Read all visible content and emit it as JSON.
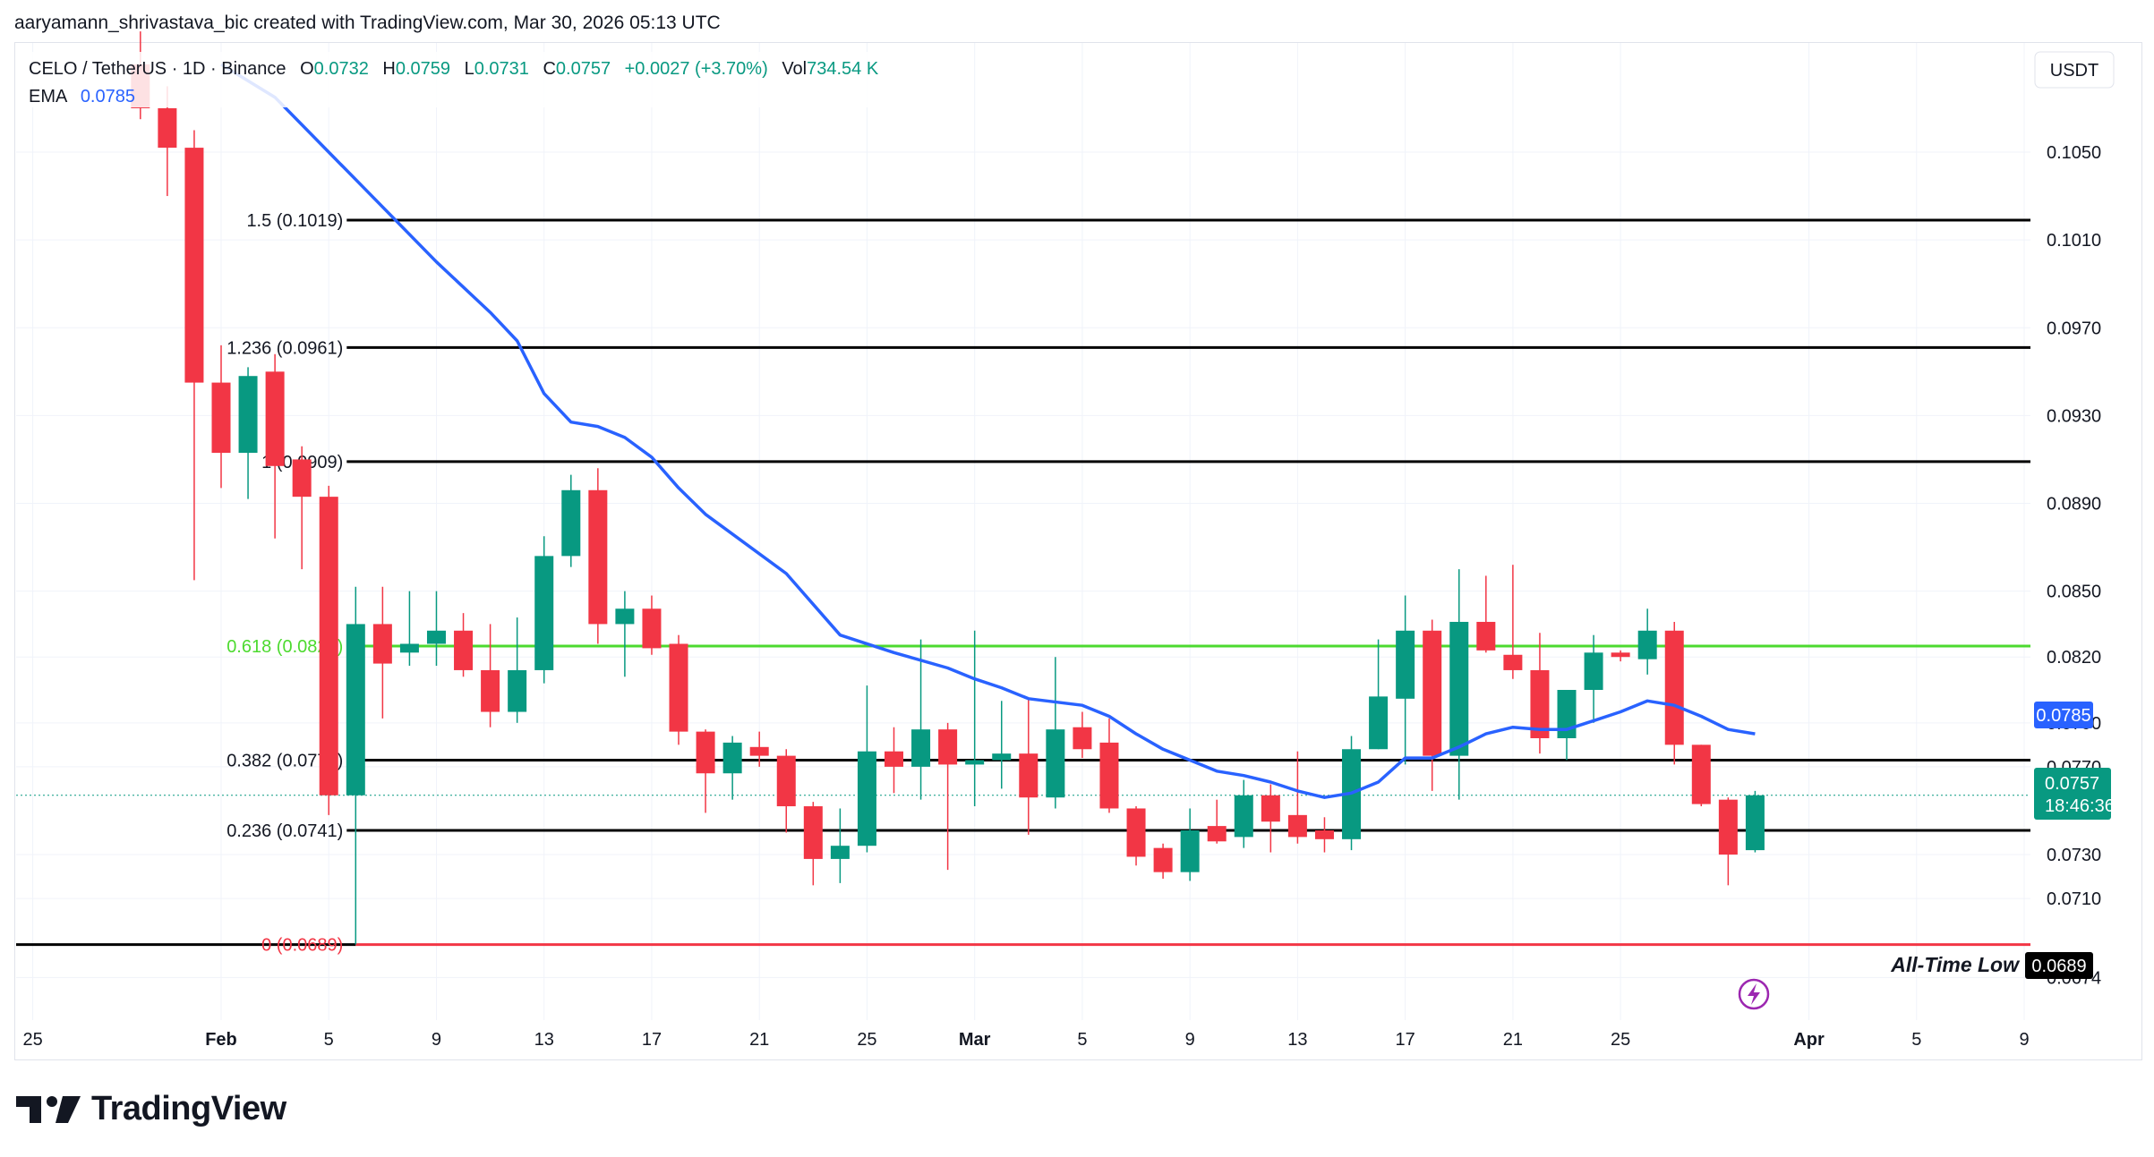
{
  "header": {
    "attribution": "aaryamann_shrivastava_bic created with TradingView.com, Mar 30, 2026 05:13 UTC"
  },
  "legend": {
    "symbol": "CELO / TetherUS · 1D · Binance",
    "o_label": "O",
    "o_value": "0.0732",
    "h_label": "H",
    "h_value": "0.0759",
    "l_label": "L",
    "l_value": "0.0731",
    "c_label": "C",
    "c_value": "0.0757",
    "change": "+0.0027 (+3.70%)",
    "vol_label": "Vol",
    "vol_value": "734.54 K",
    "ema_label": "EMA",
    "ema_value": "0.0785"
  },
  "currency_button": "USDT",
  "price_badges": {
    "ema": "0.0785",
    "last": "0.0757",
    "countdown": "18:46:36",
    "atl": "0.0689"
  },
  "atl_label": "All-Time Low",
  "brand": {
    "name": "TradingView"
  },
  "colors": {
    "up": "#089981",
    "down": "#f23645",
    "ema": "#2962ff",
    "fib_line": "#000000",
    "fib_618": "#4cda2f",
    "atl_line": "#f23645",
    "grid": "#f0f3fa",
    "text": "#131722",
    "muted": "#787b86",
    "lightning": "#9c27b0"
  },
  "chart_data": {
    "type": "candlestick",
    "symbol": "CELO / TetherUS",
    "interval": "1D",
    "exchange": "Binance",
    "y_axis": {
      "ticks": [
        0.105,
        0.101,
        0.097,
        0.093,
        0.089,
        0.085,
        0.082,
        0.079,
        0.077,
        0.073,
        0.071,
        0.0674
      ],
      "tick_labels": [
        "0.1050",
        "0.1010",
        "0.0970",
        "0.0930",
        "0.0890",
        "0.0850",
        "0.0820",
        "0.0790",
        "0.0770",
        "0.0730",
        "0.0710",
        "0.0674"
      ],
      "visible_range": [
        0.0663,
        0.1078
      ]
    },
    "x_axis": {
      "ticks": [
        {
          "label": "25",
          "date": "2026-01-25",
          "bold": false
        },
        {
          "label": "Feb",
          "date": "2026-02-01",
          "bold": true
        },
        {
          "label": "5",
          "date": "2026-02-05",
          "bold": false
        },
        {
          "label": "9",
          "date": "2026-02-09",
          "bold": false
        },
        {
          "label": "13",
          "date": "2026-02-13",
          "bold": false
        },
        {
          "label": "17",
          "date": "2026-02-17",
          "bold": false
        },
        {
          "label": "21",
          "date": "2026-02-21",
          "bold": false
        },
        {
          "label": "25",
          "date": "2026-02-25",
          "bold": false
        },
        {
          "label": "Mar",
          "date": "2026-03-01",
          "bold": true
        },
        {
          "label": "5",
          "date": "2026-03-05",
          "bold": false
        },
        {
          "label": "9",
          "date": "2026-03-09",
          "bold": false
        },
        {
          "label": "13",
          "date": "2026-03-13",
          "bold": false
        },
        {
          "label": "17",
          "date": "2026-03-17",
          "bold": false
        },
        {
          "label": "21",
          "date": "2026-03-21",
          "bold": false
        },
        {
          "label": "25",
          "date": "2026-03-25",
          "bold": false
        },
        {
          "label": "Apr",
          "date": "2026-04-01",
          "bold": true
        },
        {
          "label": "5",
          "date": "2026-04-05",
          "bold": false
        },
        {
          "label": "9",
          "date": "2026-04-09",
          "bold": false
        }
      ],
      "visible_range": [
        "2026-01-24",
        "2026-04-09"
      ]
    },
    "candles": [
      {
        "date": "2026-01-29",
        "o": 0.109,
        "h": 0.1105,
        "l": 0.1065,
        "c": 0.107
      },
      {
        "date": "2026-01-30",
        "o": 0.107,
        "h": 0.108,
        "l": 0.103,
        "c": 0.1052
      },
      {
        "date": "2026-01-31",
        "o": 0.1052,
        "h": 0.106,
        "l": 0.0855,
        "c": 0.0945
      },
      {
        "date": "2026-02-01",
        "o": 0.0945,
        "h": 0.0962,
        "l": 0.0897,
        "c": 0.0913
      },
      {
        "date": "2026-02-02",
        "o": 0.0913,
        "h": 0.0952,
        "l": 0.0892,
        "c": 0.0948
      },
      {
        "date": "2026-02-03",
        "o": 0.095,
        "h": 0.0958,
        "l": 0.0874,
        "c": 0.0907
      },
      {
        "date": "2026-02-04",
        "o": 0.091,
        "h": 0.0916,
        "l": 0.086,
        "c": 0.0893
      },
      {
        "date": "2026-02-05",
        "o": 0.0893,
        "h": 0.0898,
        "l": 0.0748,
        "c": 0.0757
      },
      {
        "date": "2026-02-06",
        "o": 0.0757,
        "h": 0.0852,
        "l": 0.0689,
        "c": 0.0835
      },
      {
        "date": "2026-02-07",
        "o": 0.0835,
        "h": 0.0852,
        "l": 0.0792,
        "c": 0.0817
      },
      {
        "date": "2026-02-08",
        "o": 0.0822,
        "h": 0.085,
        "l": 0.0816,
        "c": 0.0826
      },
      {
        "date": "2026-02-09",
        "o": 0.0826,
        "h": 0.085,
        "l": 0.0816,
        "c": 0.0832
      },
      {
        "date": "2026-02-10",
        "o": 0.0832,
        "h": 0.084,
        "l": 0.0811,
        "c": 0.0814
      },
      {
        "date": "2026-02-11",
        "o": 0.0814,
        "h": 0.0835,
        "l": 0.0788,
        "c": 0.0795
      },
      {
        "date": "2026-02-12",
        "o": 0.0795,
        "h": 0.0838,
        "l": 0.079,
        "c": 0.0814
      },
      {
        "date": "2026-02-13",
        "o": 0.0814,
        "h": 0.0875,
        "l": 0.0808,
        "c": 0.0866
      },
      {
        "date": "2026-02-14",
        "o": 0.0866,
        "h": 0.0903,
        "l": 0.0861,
        "c": 0.0896
      },
      {
        "date": "2026-02-15",
        "o": 0.0896,
        "h": 0.0906,
        "l": 0.0826,
        "c": 0.0835
      },
      {
        "date": "2026-02-16",
        "o": 0.0835,
        "h": 0.085,
        "l": 0.0811,
        "c": 0.0842
      },
      {
        "date": "2026-02-17",
        "o": 0.0842,
        "h": 0.0848,
        "l": 0.0821,
        "c": 0.0824
      },
      {
        "date": "2026-02-18",
        "o": 0.0826,
        "h": 0.083,
        "l": 0.078,
        "c": 0.0786
      },
      {
        "date": "2026-02-19",
        "o": 0.0786,
        "h": 0.0787,
        "l": 0.0749,
        "c": 0.0767
      },
      {
        "date": "2026-02-20",
        "o": 0.0767,
        "h": 0.0784,
        "l": 0.0755,
        "c": 0.0781
      },
      {
        "date": "2026-02-21",
        "o": 0.0779,
        "h": 0.0786,
        "l": 0.077,
        "c": 0.0775
      },
      {
        "date": "2026-02-22",
        "o": 0.0775,
        "h": 0.0778,
        "l": 0.074,
        "c": 0.0752
      },
      {
        "date": "2026-02-23",
        "o": 0.0752,
        "h": 0.0754,
        "l": 0.0716,
        "c": 0.0728
      },
      {
        "date": "2026-02-24",
        "o": 0.0728,
        "h": 0.0751,
        "l": 0.0717,
        "c": 0.0734
      },
      {
        "date": "2026-02-25",
        "o": 0.0734,
        "h": 0.0807,
        "l": 0.0731,
        "c": 0.0777
      },
      {
        "date": "2026-02-26",
        "o": 0.0777,
        "h": 0.0788,
        "l": 0.0758,
        "c": 0.077
      },
      {
        "date": "2026-02-27",
        "o": 0.077,
        "h": 0.0828,
        "l": 0.0755,
        "c": 0.0787
      },
      {
        "date": "2026-02-28",
        "o": 0.0787,
        "h": 0.079,
        "l": 0.0723,
        "c": 0.0771
      },
      {
        "date": "2026-03-01",
        "o": 0.0771,
        "h": 0.0832,
        "l": 0.0752,
        "c": 0.0773
      },
      {
        "date": "2026-03-02",
        "o": 0.0773,
        "h": 0.08,
        "l": 0.076,
        "c": 0.0776
      },
      {
        "date": "2026-03-03",
        "o": 0.0776,
        "h": 0.0801,
        "l": 0.0739,
        "c": 0.0756
      },
      {
        "date": "2026-03-04",
        "o": 0.0756,
        "h": 0.082,
        "l": 0.0751,
        "c": 0.0787
      },
      {
        "date": "2026-03-05",
        "o": 0.0788,
        "h": 0.0795,
        "l": 0.0774,
        "c": 0.0778
      },
      {
        "date": "2026-03-06",
        "o": 0.0781,
        "h": 0.0792,
        "l": 0.0749,
        "c": 0.0751
      },
      {
        "date": "2026-03-07",
        "o": 0.0751,
        "h": 0.0752,
        "l": 0.0725,
        "c": 0.0729
      },
      {
        "date": "2026-03-08",
        "o": 0.0733,
        "h": 0.0735,
        "l": 0.0719,
        "c": 0.0722
      },
      {
        "date": "2026-03-09",
        "o": 0.0722,
        "h": 0.0751,
        "l": 0.0718,
        "c": 0.0741
      },
      {
        "date": "2026-03-10",
        "o": 0.0743,
        "h": 0.0755,
        "l": 0.0735,
        "c": 0.0736
      },
      {
        "date": "2026-03-11",
        "o": 0.0738,
        "h": 0.0764,
        "l": 0.0733,
        "c": 0.0757
      },
      {
        "date": "2026-03-12",
        "o": 0.0757,
        "h": 0.0762,
        "l": 0.0731,
        "c": 0.0745
      },
      {
        "date": "2026-03-13",
        "o": 0.0748,
        "h": 0.0777,
        "l": 0.0735,
        "c": 0.0738
      },
      {
        "date": "2026-03-14",
        "o": 0.0741,
        "h": 0.0747,
        "l": 0.0731,
        "c": 0.0737
      },
      {
        "date": "2026-03-15",
        "o": 0.0737,
        "h": 0.0784,
        "l": 0.0732,
        "c": 0.0778
      },
      {
        "date": "2026-03-16",
        "o": 0.0778,
        "h": 0.0828,
        "l": 0.0778,
        "c": 0.0802
      },
      {
        "date": "2026-03-17",
        "o": 0.0801,
        "h": 0.0848,
        "l": 0.0771,
        "c": 0.0832
      },
      {
        "date": "2026-03-18",
        "o": 0.0832,
        "h": 0.0837,
        "l": 0.0759,
        "c": 0.0775
      },
      {
        "date": "2026-03-19",
        "o": 0.0775,
        "h": 0.086,
        "l": 0.0755,
        "c": 0.0836
      },
      {
        "date": "2026-03-20",
        "o": 0.0836,
        "h": 0.0857,
        "l": 0.0822,
        "c": 0.0823
      },
      {
        "date": "2026-03-21",
        "o": 0.0821,
        "h": 0.0862,
        "l": 0.081,
        "c": 0.0814
      },
      {
        "date": "2026-03-22",
        "o": 0.0814,
        "h": 0.0831,
        "l": 0.0776,
        "c": 0.0783
      },
      {
        "date": "2026-03-23",
        "o": 0.0783,
        "h": 0.0803,
        "l": 0.0773,
        "c": 0.0805
      },
      {
        "date": "2026-03-24",
        "o": 0.0805,
        "h": 0.083,
        "l": 0.079,
        "c": 0.0822
      },
      {
        "date": "2026-03-25",
        "o": 0.0822,
        "h": 0.0823,
        "l": 0.0818,
        "c": 0.082
      },
      {
        "date": "2026-03-26",
        "o": 0.0819,
        "h": 0.0842,
        "l": 0.0812,
        "c": 0.0832
      },
      {
        "date": "2026-03-27",
        "o": 0.0832,
        "h": 0.0836,
        "l": 0.0771,
        "c": 0.078
      },
      {
        "date": "2026-03-28",
        "o": 0.078,
        "h": 0.078,
        "l": 0.0752,
        "c": 0.0753
      },
      {
        "date": "2026-03-29",
        "o": 0.0755,
        "h": 0.0756,
        "l": 0.0716,
        "c": 0.073
      },
      {
        "date": "2026-03-30",
        "o": 0.0732,
        "h": 0.0759,
        "l": 0.0731,
        "c": 0.0757
      }
    ],
    "ema_series": {
      "name": "EMA",
      "points": [
        {
          "date": "2026-02-01",
          "v": 0.109
        },
        {
          "date": "2026-02-03",
          "v": 0.1075
        },
        {
          "date": "2026-02-05",
          "v": 0.105
        },
        {
          "date": "2026-02-07",
          "v": 0.1025
        },
        {
          "date": "2026-02-09",
          "v": 0.1
        },
        {
          "date": "2026-02-11",
          "v": 0.0977
        },
        {
          "date": "2026-02-12",
          "v": 0.0964
        },
        {
          "date": "2026-02-13",
          "v": 0.094
        },
        {
          "date": "2026-02-14",
          "v": 0.0927
        },
        {
          "date": "2026-02-15",
          "v": 0.0925
        },
        {
          "date": "2026-02-16",
          "v": 0.092
        },
        {
          "date": "2026-02-17",
          "v": 0.0911
        },
        {
          "date": "2026-02-18",
          "v": 0.0897
        },
        {
          "date": "2026-02-19",
          "v": 0.0885
        },
        {
          "date": "2026-02-20",
          "v": 0.0876
        },
        {
          "date": "2026-02-22",
          "v": 0.0858
        },
        {
          "date": "2026-02-23",
          "v": 0.0844
        },
        {
          "date": "2026-02-24",
          "v": 0.083
        },
        {
          "date": "2026-02-26",
          "v": 0.0822
        },
        {
          "date": "2026-02-28",
          "v": 0.0815
        },
        {
          "date": "2026-03-01",
          "v": 0.081
        },
        {
          "date": "2026-03-02",
          "v": 0.0806
        },
        {
          "date": "2026-03-03",
          "v": 0.0801
        },
        {
          "date": "2026-03-05",
          "v": 0.0798
        },
        {
          "date": "2026-03-06",
          "v": 0.0793
        },
        {
          "date": "2026-03-07",
          "v": 0.0785
        },
        {
          "date": "2026-03-08",
          "v": 0.0778
        },
        {
          "date": "2026-03-09",
          "v": 0.0773
        },
        {
          "date": "2026-03-10",
          "v": 0.0768
        },
        {
          "date": "2026-03-11",
          "v": 0.0766
        },
        {
          "date": "2026-03-12",
          "v": 0.0763
        },
        {
          "date": "2026-03-13",
          "v": 0.0759
        },
        {
          "date": "2026-03-14",
          "v": 0.0756
        },
        {
          "date": "2026-03-15",
          "v": 0.0758
        },
        {
          "date": "2026-03-16",
          "v": 0.0763
        },
        {
          "date": "2026-03-17",
          "v": 0.0774
        },
        {
          "date": "2026-03-18",
          "v": 0.0774
        },
        {
          "date": "2026-03-19",
          "v": 0.0779
        },
        {
          "date": "2026-03-20",
          "v": 0.0785
        },
        {
          "date": "2026-03-21",
          "v": 0.0788
        },
        {
          "date": "2026-03-22",
          "v": 0.0787
        },
        {
          "date": "2026-03-23",
          "v": 0.0787
        },
        {
          "date": "2026-03-24",
          "v": 0.0791
        },
        {
          "date": "2026-03-25",
          "v": 0.0795
        },
        {
          "date": "2026-03-26",
          "v": 0.08
        },
        {
          "date": "2026-03-27",
          "v": 0.0798
        },
        {
          "date": "2026-03-28",
          "v": 0.0793
        },
        {
          "date": "2026-03-29",
          "v": 0.0787
        },
        {
          "date": "2026-03-30",
          "v": 0.0785
        }
      ]
    },
    "fib_levels": [
      {
        "label": "1.5 (0.1019)",
        "value": 0.1019
      },
      {
        "label": "1.236 (0.0961)",
        "value": 0.0961
      },
      {
        "label": "1 (0.0909)",
        "value": 0.0909
      },
      {
        "label": "0.618 (0.0825)",
        "value": 0.0825,
        "highlight": true
      },
      {
        "label": "0.382 (0.0773)",
        "value": 0.0773
      },
      {
        "label": "0.236 (0.0741)",
        "value": 0.0741
      },
      {
        "label": "0 (0.0689)",
        "value": 0.0689,
        "is_zero": true
      }
    ],
    "fib_start_date": "2026-02-06"
  }
}
